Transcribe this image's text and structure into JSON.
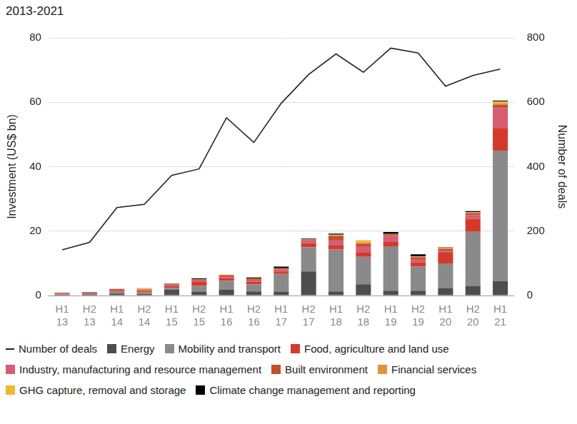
{
  "chart_data": {
    "type": "bar",
    "title": "2013-2021",
    "stacked": true,
    "grid": true,
    "legend": "bottom",
    "y_label": "Investment (US$ bn)",
    "y2_label": "Number of deals",
    "categories": [
      "H1 13",
      "H2 13",
      "H1 14",
      "H2 14",
      "H1 15",
      "H2 15",
      "H1 16",
      "H2 16",
      "H1 17",
      "H2 17",
      "H1 18",
      "H2 18",
      "H1 19",
      "H2 19",
      "H1 20",
      "H2 20",
      "H1 21"
    ],
    "ylim": [
      0,
      80
    ],
    "yticks": [
      0,
      20,
      40,
      60,
      80
    ],
    "y2lim": [
      0,
      800
    ],
    "y2ticks": [
      0,
      200,
      400,
      600,
      800
    ],
    "series": [
      {
        "name": "Number of deals",
        "type": "line",
        "axis": "y2",
        "color": "#222222",
        "values": [
          142,
          165,
          273,
          283,
          373,
          393,
          552,
          475,
          597,
          686,
          750,
          693,
          768,
          753,
          650,
          683,
          703
        ]
      },
      {
        "name": "Energy",
        "color": "#4d4d4d",
        "values": [
          0.3,
          0.4,
          0.6,
          0.5,
          1.8,
          1.2,
          1.8,
          1.3,
          1.2,
          7.5,
          1.3,
          3.5,
          1.5,
          1.5,
          2.2,
          3.0,
          4.5
        ]
      },
      {
        "name": "Mobility and transport",
        "color": "#8a8a8a",
        "values": [
          0.2,
          0.2,
          0.6,
          0.5,
          0.6,
          1.8,
          2.8,
          2.2,
          5.5,
          7.5,
          13.0,
          8.5,
          13.8,
          7.5,
          7.8,
          16.8,
          40.5
        ]
      },
      {
        "name": "Food, agriculture and land use",
        "color": "#d5392b",
        "values": [
          0.2,
          0.3,
          0.4,
          0.4,
          0.6,
          1.2,
          0.8,
          0.8,
          0.8,
          1.3,
          1.2,
          1.3,
          1.5,
          1.3,
          3.3,
          4.0,
          7.0
        ]
      },
      {
        "name": "Industry, manufacturing and resource management",
        "color": "#d65d74",
        "values": [
          0.1,
          0.1,
          0.2,
          0.2,
          0.3,
          0.4,
          0.6,
          0.6,
          0.6,
          0.8,
          1.8,
          2.0,
          1.7,
          1.0,
          0.5,
          1.2,
          6.2
        ]
      },
      {
        "name": "Built environment",
        "color": "#c2522a",
        "values": [
          0.1,
          0.1,
          0.2,
          0.2,
          0.2,
          0.4,
          0.3,
          0.3,
          0.3,
          0.3,
          1.2,
          0.8,
          0.5,
          0.6,
          0.7,
          0.6,
          1.0
        ]
      },
      {
        "name": "Financial services",
        "color": "#e3913c",
        "values": [
          0.05,
          0,
          0.1,
          0.3,
          0.1,
          0.1,
          0.1,
          0.1,
          0.1,
          0.1,
          0.3,
          0.4,
          0.1,
          0.2,
          0.3,
          0.2,
          0.5
        ]
      },
      {
        "name": "GHG capture, removal and storage",
        "color": "#f3b632",
        "values": [
          0,
          0,
          0,
          0.2,
          0,
          0,
          0.1,
          0,
          0,
          0,
          0.1,
          0.7,
          0,
          0.1,
          0.1,
          0.1,
          0.5
        ]
      },
      {
        "name": "Climate change management and reporting",
        "color": "#000000",
        "values": [
          0,
          0,
          0,
          0,
          0.1,
          0.2,
          0,
          0.3,
          0.5,
          0.2,
          0.3,
          0,
          0.6,
          0.6,
          0.1,
          0.3,
          0.3
        ]
      }
    ]
  }
}
